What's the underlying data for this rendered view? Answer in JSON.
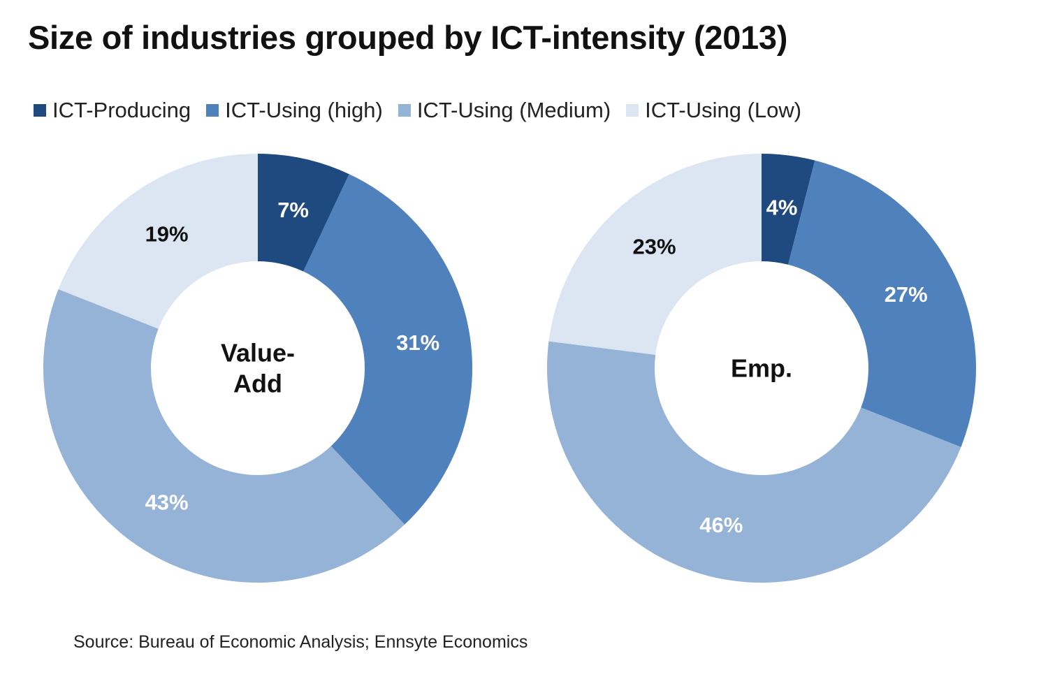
{
  "chart_data": {
    "type": "pie",
    "title": "Size of industries grouped by ICT-intensity (2013)",
    "source": "Source: Bureau of Economic Analysis; Ennsyte Economics",
    "legend_position": "top",
    "series_names": [
      "ICT-Producing",
      "ICT-Using (high)",
      "ICT-Using (Medium)",
      "ICT-Using (Low)"
    ],
    "colors": [
      "#1f4a7f",
      "#4f81bd",
      "#95b3d7",
      "#dce6f2"
    ],
    "label_colors": [
      "#ffffff",
      "#ffffff",
      "#ffffff",
      "#111111"
    ],
    "charts": [
      {
        "center_label": [
          "Value-",
          "Add"
        ],
        "values": [
          7,
          31,
          43,
          19
        ],
        "labels": [
          "7%",
          "31%",
          "43%",
          "19%"
        ]
      },
      {
        "center_label": [
          "Emp."
        ],
        "values": [
          4,
          27,
          46,
          23
        ],
        "labels": [
          "4%",
          "27%",
          "46%",
          "23%"
        ]
      }
    ]
  }
}
